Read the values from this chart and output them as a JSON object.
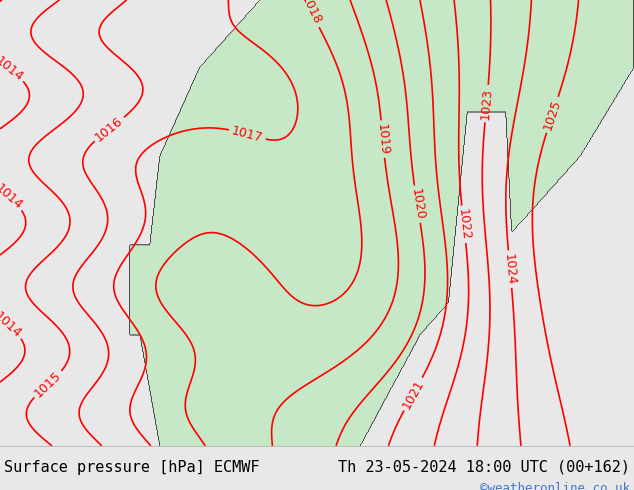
{
  "title_left": "Surface pressure [hPa] ECMWF",
  "title_right": "Th 23-05-2024 18:00 UTC (00+162)",
  "watermark": "©weatheronline.co.uk",
  "bg_color": "#e8e8e8",
  "land_color": "#c8e8c8",
  "sea_color": "#e8e8e8",
  "isobar_color": "#ff0000",
  "coast_color": "#404040",
  "text_color_left": "#000000",
  "text_color_right": "#000000",
  "watermark_color": "#4477cc",
  "isobar_values": [
    1014,
    1015,
    1016,
    1017,
    1018,
    1019,
    1020,
    1021,
    1022,
    1023,
    1024,
    1025
  ],
  "font_size_title": 11,
  "font_size_isobar": 9,
  "font_size_watermark": 9,
  "fig_width": 6.34,
  "fig_height": 4.9,
  "dpi": 100
}
